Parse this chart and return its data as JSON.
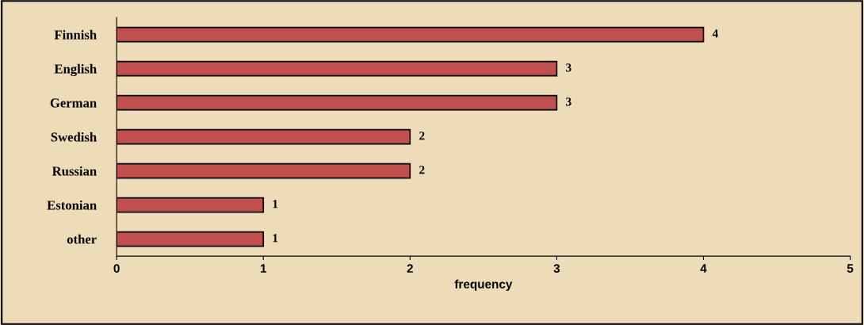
{
  "chart_data": {
    "type": "bar",
    "orientation": "horizontal",
    "xlabel": "frequency",
    "categories": [
      "Finnish",
      "English",
      "German",
      "Swedish",
      "Russian",
      "Estonian",
      "other"
    ],
    "values": [
      4,
      3,
      3,
      2,
      2,
      1,
      1
    ],
    "color": "#c0504d",
    "xlim": [
      0,
      5
    ],
    "xticks": [
      0,
      1,
      2,
      3,
      4,
      5
    ],
    "grid": false,
    "legend": false,
    "data_labels": true
  }
}
